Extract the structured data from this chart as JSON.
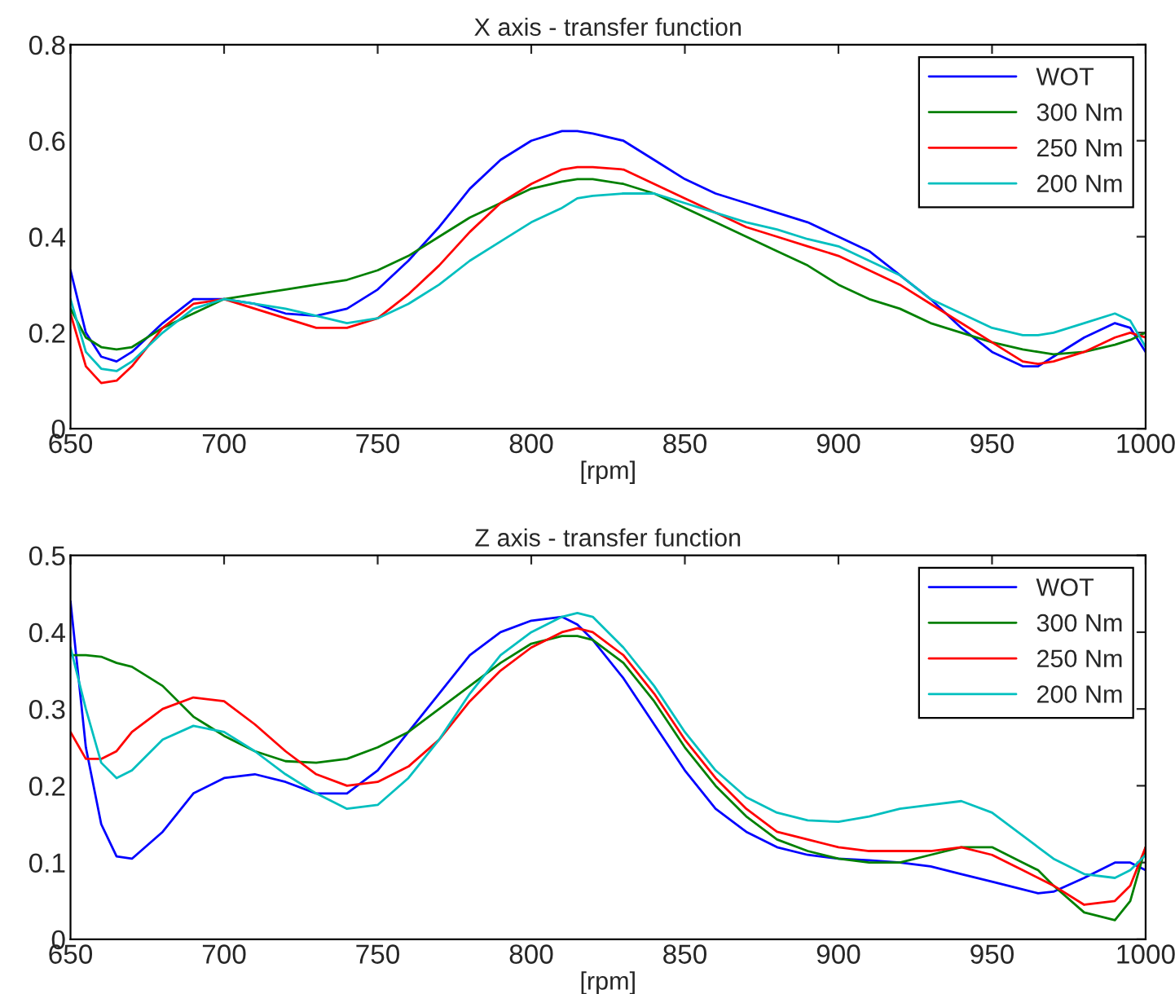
{
  "chart_data": [
    {
      "type": "line",
      "title": "X axis - transfer function",
      "xlabel": "[rpm]",
      "xlim": [
        650,
        1000
      ],
      "xticks": [
        650,
        700,
        750,
        800,
        850,
        900,
        950,
        1000
      ],
      "ylim": [
        0,
        0.8
      ],
      "yticks": [
        0,
        0.2,
        0.4,
        0.6,
        0.8
      ],
      "legend": "top right",
      "grid": false,
      "line_style": "solid",
      "x": [
        650,
        655,
        660,
        665,
        670,
        680,
        690,
        700,
        710,
        720,
        730,
        740,
        750,
        760,
        770,
        780,
        790,
        800,
        810,
        815,
        820,
        830,
        840,
        850,
        860,
        870,
        880,
        890,
        900,
        910,
        920,
        930,
        940,
        950,
        960,
        965,
        970,
        980,
        990,
        995,
        1000
      ],
      "series": [
        {
          "name": "WOT",
          "color": "#0000ff",
          "values": [
            0.33,
            0.2,
            0.15,
            0.14,
            0.16,
            0.22,
            0.27,
            0.27,
            0.26,
            0.24,
            0.235,
            0.25,
            0.29,
            0.35,
            0.42,
            0.5,
            0.56,
            0.6,
            0.62,
            0.62,
            0.615,
            0.6,
            0.56,
            0.52,
            0.49,
            0.47,
            0.45,
            0.43,
            0.4,
            0.37,
            0.32,
            0.27,
            0.21,
            0.16,
            0.13,
            0.13,
            0.15,
            0.19,
            0.22,
            0.21,
            0.16
          ]
        },
        {
          "name": "300 Nm",
          "color": "#008000",
          "values": [
            0.25,
            0.19,
            0.17,
            0.165,
            0.17,
            0.21,
            0.24,
            0.27,
            0.28,
            0.29,
            0.3,
            0.31,
            0.33,
            0.36,
            0.4,
            0.44,
            0.47,
            0.5,
            0.515,
            0.52,
            0.52,
            0.51,
            0.49,
            0.46,
            0.43,
            0.4,
            0.37,
            0.34,
            0.3,
            0.27,
            0.25,
            0.22,
            0.2,
            0.18,
            0.165,
            0.16,
            0.155,
            0.16,
            0.175,
            0.185,
            0.2
          ]
        },
        {
          "name": "250 Nm",
          "color": "#ff0000",
          "values": [
            0.24,
            0.13,
            0.095,
            0.1,
            0.13,
            0.21,
            0.26,
            0.27,
            0.25,
            0.23,
            0.21,
            0.21,
            0.23,
            0.28,
            0.34,
            0.41,
            0.47,
            0.51,
            0.54,
            0.545,
            0.545,
            0.54,
            0.51,
            0.48,
            0.45,
            0.42,
            0.4,
            0.38,
            0.36,
            0.33,
            0.3,
            0.26,
            0.22,
            0.18,
            0.14,
            0.135,
            0.14,
            0.16,
            0.19,
            0.2,
            0.19
          ]
        },
        {
          "name": "200 Nm",
          "color": "#00bfbf",
          "values": [
            0.27,
            0.16,
            0.125,
            0.12,
            0.14,
            0.2,
            0.25,
            0.27,
            0.26,
            0.25,
            0.235,
            0.22,
            0.23,
            0.26,
            0.3,
            0.35,
            0.39,
            0.43,
            0.46,
            0.48,
            0.485,
            0.49,
            0.49,
            0.47,
            0.45,
            0.43,
            0.415,
            0.395,
            0.38,
            0.35,
            0.32,
            0.27,
            0.24,
            0.21,
            0.195,
            0.195,
            0.2,
            0.22,
            0.24,
            0.225,
            0.17
          ]
        }
      ]
    },
    {
      "type": "line",
      "title": "Z axis - transfer function",
      "xlabel": "[rpm]",
      "xlim": [
        650,
        1000
      ],
      "xticks": [
        650,
        700,
        750,
        800,
        850,
        900,
        950,
        1000
      ],
      "ylim": [
        0,
        0.5
      ],
      "yticks": [
        0,
        0.1,
        0.2,
        0.3,
        0.4,
        0.5
      ],
      "legend": "top right",
      "grid": false,
      "line_style": "solid",
      "x": [
        650,
        655,
        660,
        665,
        670,
        680,
        690,
        700,
        710,
        720,
        730,
        740,
        750,
        760,
        770,
        780,
        790,
        800,
        810,
        815,
        820,
        830,
        840,
        850,
        860,
        870,
        880,
        890,
        900,
        910,
        920,
        930,
        940,
        950,
        960,
        965,
        970,
        980,
        990,
        995,
        1000
      ],
      "series": [
        {
          "name": "WOT",
          "color": "#0000ff",
          "values": [
            0.44,
            0.25,
            0.15,
            0.108,
            0.105,
            0.14,
            0.19,
            0.21,
            0.215,
            0.205,
            0.19,
            0.19,
            0.22,
            0.27,
            0.32,
            0.37,
            0.4,
            0.415,
            0.42,
            0.41,
            0.39,
            0.34,
            0.28,
            0.22,
            0.17,
            0.14,
            0.12,
            0.11,
            0.105,
            0.103,
            0.1,
            0.095,
            0.085,
            0.075,
            0.065,
            0.06,
            0.062,
            0.08,
            0.1,
            0.1,
            0.09
          ]
        },
        {
          "name": "300 Nm",
          "color": "#008000",
          "values": [
            0.37,
            0.37,
            0.368,
            0.36,
            0.355,
            0.33,
            0.29,
            0.265,
            0.245,
            0.232,
            0.23,
            0.235,
            0.25,
            0.27,
            0.3,
            0.33,
            0.36,
            0.385,
            0.395,
            0.395,
            0.39,
            0.36,
            0.31,
            0.25,
            0.2,
            0.16,
            0.13,
            0.115,
            0.105,
            0.1,
            0.1,
            0.11,
            0.12,
            0.12,
            0.1,
            0.09,
            0.07,
            0.035,
            0.025,
            0.05,
            0.12
          ]
        },
        {
          "name": "250 Nm",
          "color": "#ff0000",
          "values": [
            0.27,
            0.235,
            0.235,
            0.245,
            0.27,
            0.3,
            0.315,
            0.31,
            0.28,
            0.245,
            0.215,
            0.2,
            0.205,
            0.225,
            0.26,
            0.31,
            0.35,
            0.38,
            0.4,
            0.405,
            0.4,
            0.37,
            0.32,
            0.26,
            0.21,
            0.17,
            0.14,
            0.13,
            0.12,
            0.115,
            0.115,
            0.115,
            0.12,
            0.11,
            0.09,
            0.08,
            0.07,
            0.045,
            0.05,
            0.07,
            0.12
          ]
        },
        {
          "name": "200 Nm",
          "color": "#00bfbf",
          "values": [
            0.38,
            0.3,
            0.23,
            0.21,
            0.22,
            0.26,
            0.278,
            0.27,
            0.245,
            0.215,
            0.19,
            0.17,
            0.175,
            0.21,
            0.26,
            0.32,
            0.37,
            0.4,
            0.42,
            0.425,
            0.42,
            0.38,
            0.33,
            0.27,
            0.22,
            0.185,
            0.165,
            0.155,
            0.153,
            0.16,
            0.17,
            0.175,
            0.18,
            0.165,
            0.135,
            0.12,
            0.105,
            0.085,
            0.08,
            0.09,
            0.11
          ]
        }
      ]
    }
  ]
}
